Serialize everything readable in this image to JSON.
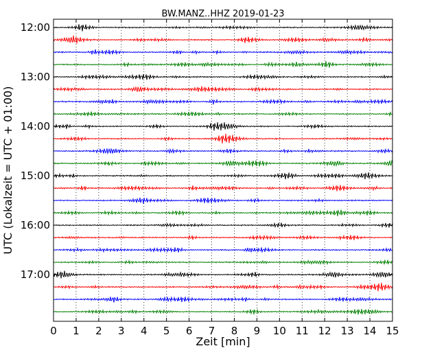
{
  "chart_data": {
    "type": "line",
    "title": "BW.MANZ..HHZ 2019-01-23",
    "xlabel": "Zeit  [min]",
    "ylabel": "UTC (Lokalzeit = UTC + 01:00)",
    "xlim": [
      0,
      15
    ],
    "x_ticks": [
      "0",
      "1",
      "2",
      "3",
      "4",
      "5",
      "6",
      "7",
      "8",
      "9",
      "10",
      "11",
      "12",
      "13",
      "14",
      "15"
    ],
    "y_ticks": [
      "12:00",
      "13:00",
      "14:00",
      "15:00",
      "16:00",
      "17:00"
    ],
    "trace_start": "12:00",
    "trace_interval_minutes": 15,
    "trace_count": 24,
    "trace_colors": [
      "#000000",
      "#ff0000",
      "#0000ff",
      "#008000"
    ],
    "grid": "vertical-dotted"
  }
}
